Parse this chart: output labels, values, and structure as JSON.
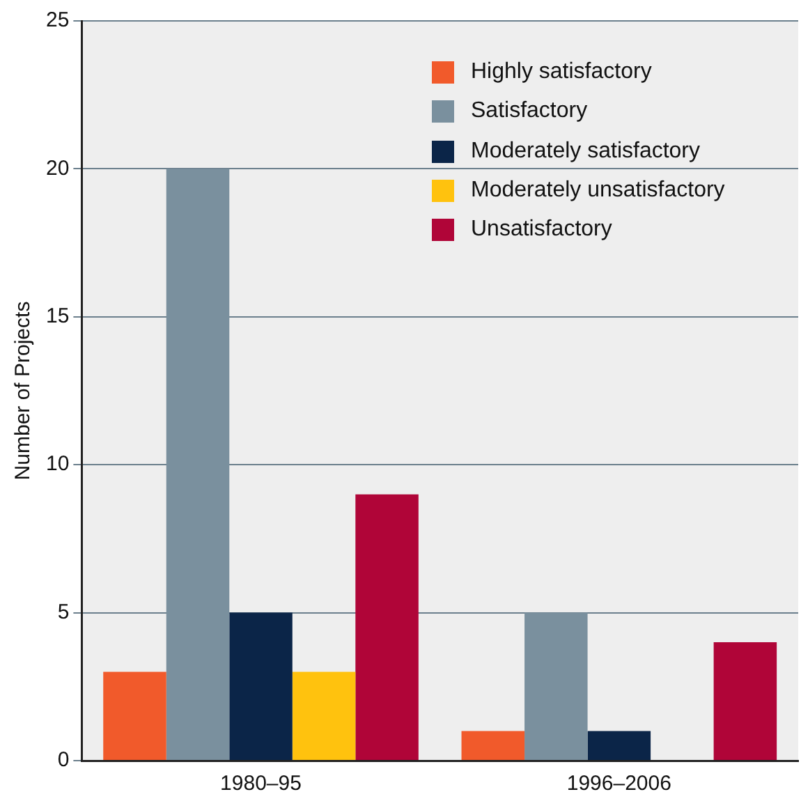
{
  "chart_data": {
    "type": "bar",
    "ylabel": "Number of Projects",
    "categories": [
      "1980–95",
      "1996–2006"
    ],
    "series": [
      {
        "name": "Highly satisfactory",
        "color": "#f15a2b",
        "values": [
          3,
          1
        ]
      },
      {
        "name": "Satisfactory",
        "color": "#7a909e",
        "values": [
          20,
          5
        ]
      },
      {
        "name": "Moderately satisfactory",
        "color": "#0b2548",
        "values": [
          5,
          1
        ]
      },
      {
        "name": "Moderately unsatisfactory",
        "color": "#ffc20e",
        "values": [
          3,
          0
        ]
      },
      {
        "name": "Unsatisfactory",
        "color": "#b00538",
        "values": [
          9,
          4
        ]
      }
    ],
    "ylim": [
      0,
      25
    ],
    "yticks": [
      0,
      5,
      10,
      15,
      20,
      25
    ],
    "grid": "y",
    "legend": "top right"
  }
}
